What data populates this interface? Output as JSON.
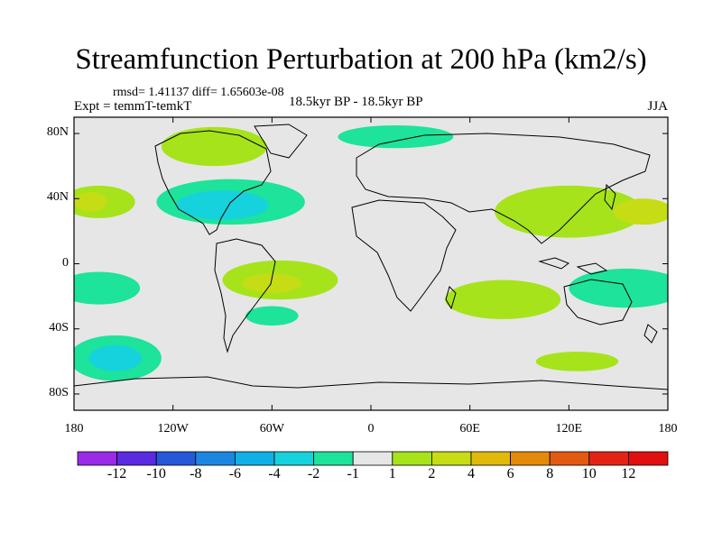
{
  "title": "Streamfunction Perturbation at 200 hPa (km2/s)",
  "stats": "rmsd= 1.41137 diff= 1.65603e-08",
  "experiment": "Expt = temmT-temkT",
  "period": "18.5kyr BP - 18.5kyr BP",
  "season": "JJA",
  "map_data": {
    "projection": "cylindrical equidistant",
    "lon_range": [
      -180,
      180
    ],
    "lat_range": [
      -90,
      90
    ],
    "lat_ticks": [
      {
        "value": 80,
        "label": "80N"
      },
      {
        "value": 40,
        "label": "40N"
      },
      {
        "value": 0,
        "label": "0"
      },
      {
        "value": -40,
        "label": "40S"
      },
      {
        "value": -80,
        "label": "80S"
      }
    ],
    "lon_ticks": [
      {
        "value": -180,
        "label": "180"
      },
      {
        "value": -120,
        "label": "120W"
      },
      {
        "value": -60,
        "label": "60W"
      },
      {
        "value": 0,
        "label": "0"
      },
      {
        "value": 60,
        "label": "60E"
      },
      {
        "value": 120,
        "label": "120E"
      },
      {
        "value": 180,
        "label": "180"
      }
    ],
    "colorbar": {
      "labels": [
        "-12",
        "-10",
        "-8",
        "-6",
        "-4",
        "-2",
        "-1",
        "1",
        "2",
        "4",
        "6",
        "8",
        "10",
        "12"
      ],
      "colors": [
        "#9a2be6",
        "#5a2be0",
        "#2559d9",
        "#1d86e0",
        "#11b0e6",
        "#16d2dc",
        "#1ee39a",
        "#e6e6e6",
        "#a6e31b",
        "#c6dc14",
        "#e0ba0a",
        "#e38a0a",
        "#e35a12",
        "#e32414",
        "#e01010"
      ]
    },
    "features": [
      {
        "name": "north-pacific-positive",
        "level": 2,
        "lon": -165,
        "lat": 38,
        "rx": 22,
        "ry": 10
      },
      {
        "name": "north-pacific-positive-core",
        "level": 4,
        "lon": -170,
        "lat": 38,
        "rx": 10,
        "ry": 6
      },
      {
        "name": "north-america-negative",
        "level": -2,
        "lon": -85,
        "lat": 38,
        "rx": 45,
        "ry": 14
      },
      {
        "name": "north-america-negative-core",
        "level": -4,
        "lon": -90,
        "lat": 36,
        "rx": 28,
        "ry": 9
      },
      {
        "name": "canada-positive",
        "level": 2,
        "lon": -95,
        "lat": 72,
        "rx": 32,
        "ry": 12
      },
      {
        "name": "arctic-negative",
        "level": -2,
        "lon": 15,
        "lat": 78,
        "rx": 35,
        "ry": 7
      },
      {
        "name": "eurasia-positive",
        "level": 2,
        "lon": 120,
        "lat": 32,
        "rx": 45,
        "ry": 16
      },
      {
        "name": "east-asia-positive-core",
        "level": 4,
        "lon": 165,
        "lat": 32,
        "rx": 18,
        "ry": 8
      },
      {
        "name": "south-america-positive",
        "level": 2,
        "lon": -55,
        "lat": -10,
        "rx": 35,
        "ry": 12
      },
      {
        "name": "south-america-positive-core",
        "level": 4,
        "lon": -60,
        "lat": -12,
        "rx": 18,
        "ry": 6
      },
      {
        "name": "tropical-pacific-negative",
        "level": -2,
        "lon": -165,
        "lat": -15,
        "rx": 25,
        "ry": 10
      },
      {
        "name": "southeast-pacific-negative",
        "level": -2,
        "lon": -155,
        "lat": -58,
        "rx": 28,
        "ry": 14
      },
      {
        "name": "southeast-pacific-negative-core",
        "level": -4,
        "lon": -155,
        "lat": -58,
        "rx": 16,
        "ry": 8
      },
      {
        "name": "indian-ocean-positive",
        "level": 2,
        "lon": 80,
        "lat": -22,
        "rx": 35,
        "ry": 12
      },
      {
        "name": "indonesia-negative",
        "level": -2,
        "lon": 155,
        "lat": -15,
        "rx": 35,
        "ry": 12
      },
      {
        "name": "southern-ocean-positive",
        "level": 2,
        "lon": 125,
        "lat": -60,
        "rx": 25,
        "ry": 6
      },
      {
        "name": "south-atlantic-negative",
        "level": -2,
        "lon": -60,
        "lat": -32,
        "rx": 16,
        "ry": 6
      }
    ]
  }
}
